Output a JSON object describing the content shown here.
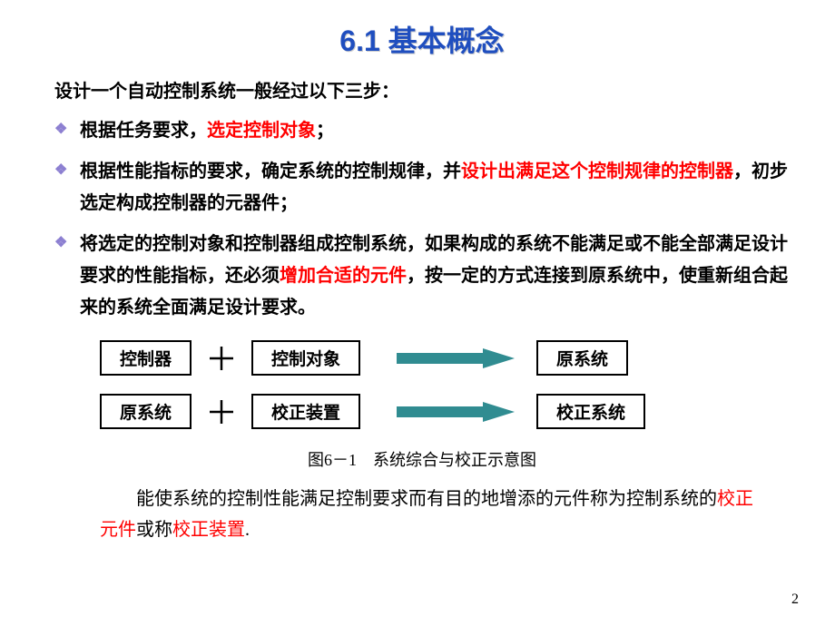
{
  "title": "6.1 基本概念",
  "intro": "设计一个自动控制系统一般经过以下三步：",
  "bullets": [
    {
      "segments": [
        {
          "t": "根据任务要求，",
          "c": "#000"
        },
        {
          "t": "选定控制对象",
          "c": "#ff0000"
        },
        {
          "t": "；",
          "c": "#000"
        }
      ]
    },
    {
      "segments": [
        {
          "t": "根据性能指标的要求，确定系统的控制规律，并",
          "c": "#000"
        },
        {
          "t": "设计出满足这个控制规律的控制器",
          "c": "#ff0000"
        },
        {
          "t": "，初步选定构成控制器的元器件；",
          "c": "#000"
        }
      ]
    },
    {
      "segments": [
        {
          "t": "将选定的控制对象和控制器组成控制系统，如果构成的系统不能满足或不能全部满足设计要求的性能指标，还必须",
          "c": "#000"
        },
        {
          "t": "增加合适的元件",
          "c": "#ff0000"
        },
        {
          "t": "，按一定的方式连接到原系统中，使重新组合起来的系统全面满足设计要求。",
          "c": "#000"
        }
      ]
    }
  ],
  "diagram": {
    "row1": {
      "box1": "控制器",
      "box2": "控制对象",
      "box3": "原系统"
    },
    "row2": {
      "box1": "原系统",
      "box2": "校正装置",
      "box3": "校正系统"
    },
    "plus_stroke": "#000000",
    "arrow_fill": "#308C91",
    "box_border": "#000000"
  },
  "caption": "图6－1　系统综合与校正示意图",
  "conclusion": {
    "segments": [
      {
        "t": "能使系统的控制性能满足控制要求而有目的地增添的元件称为控制系统的",
        "c": "#000"
      },
      {
        "t": "校正元件",
        "c": "#ff0000"
      },
      {
        "t": "或称",
        "c": "#000"
      },
      {
        "t": "校正装置",
        "c": "#ff0000"
      },
      {
        "t": ".",
        "c": "#000"
      }
    ]
  },
  "page_number": "2"
}
